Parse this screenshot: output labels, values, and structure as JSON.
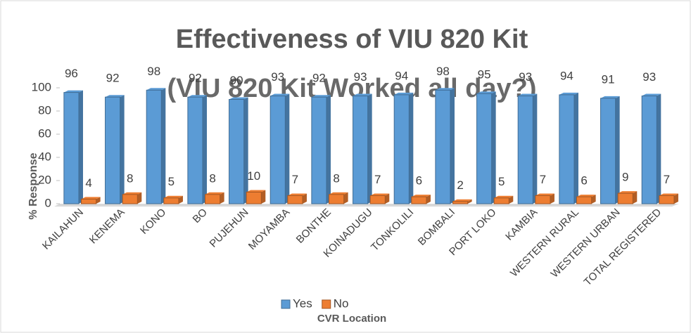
{
  "chart_data": {
    "type": "bar",
    "title": "Effectiveness of VIU 820 Kit",
    "subtitle": "(VIU 820 Kit Worked all day?)",
    "y_label": "% Response",
    "x_label": "CVR Location",
    "categories": [
      "KAILAHUN",
      "KENEMA",
      "KONO",
      "BO",
      "PUJEHUN",
      "MOYAMBA",
      "BONTHE",
      "KOINADUGU",
      "TONKOLILI",
      "BOMBALI",
      "PORT LOKO",
      "KAMBIA",
      "WESTERN RURAL",
      "WESTERN URBAN",
      "TOTAL REGISTERED"
    ],
    "series": [
      {
        "name": "Yes",
        "color": "#5b9bd5",
        "values": [
          96,
          92,
          98,
          92,
          90,
          93,
          92,
          93,
          94,
          98,
          95,
          93,
          94,
          91,
          93
        ]
      },
      {
        "name": "No",
        "color": "#ed7d31",
        "values": [
          4,
          8,
          5,
          8,
          10,
          7,
          8,
          7,
          6,
          2,
          5,
          7,
          6,
          9,
          7
        ]
      }
    ],
    "ylim": [
      0,
      100
    ],
    "yticks": [
      0,
      20,
      40,
      60,
      80,
      100
    ],
    "legend": "bottom"
  }
}
